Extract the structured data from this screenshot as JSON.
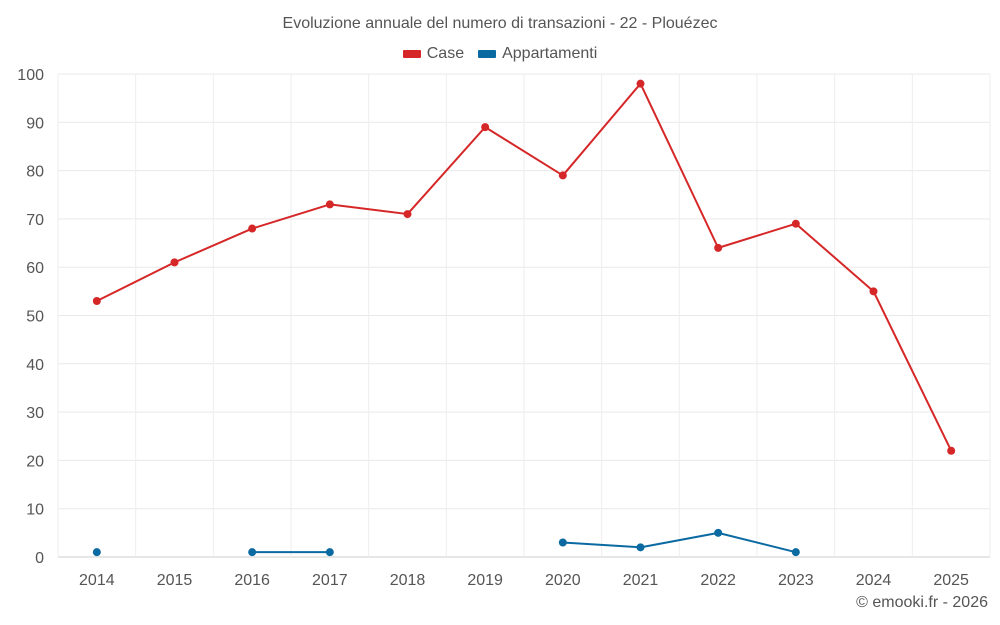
{
  "chart_data": {
    "type": "line",
    "title": "Evoluzione annuale del numero di transazioni - 22 - Plouézec",
    "xlabel": "",
    "ylabel": "",
    "categories": [
      "2014",
      "2015",
      "2016",
      "2017",
      "2018",
      "2019",
      "2020",
      "2021",
      "2022",
      "2023",
      "2024",
      "2025"
    ],
    "ylim": [
      0,
      100
    ],
    "yticks": [
      0,
      10,
      20,
      30,
      40,
      50,
      60,
      70,
      80,
      90,
      100
    ],
    "grid": true,
    "legend_position": "top-center",
    "series": [
      {
        "name": "Case",
        "color": "#d62728",
        "values": [
          53,
          61,
          68,
          73,
          71,
          89,
          79,
          98,
          64,
          69,
          55,
          22
        ]
      },
      {
        "name": "Appartamenti",
        "color": "#0a6aa1",
        "values": [
          1,
          null,
          1,
          1,
          null,
          null,
          3,
          2,
          5,
          1,
          null,
          null
        ]
      }
    ]
  },
  "credit": "© emooki.fr - 2026"
}
